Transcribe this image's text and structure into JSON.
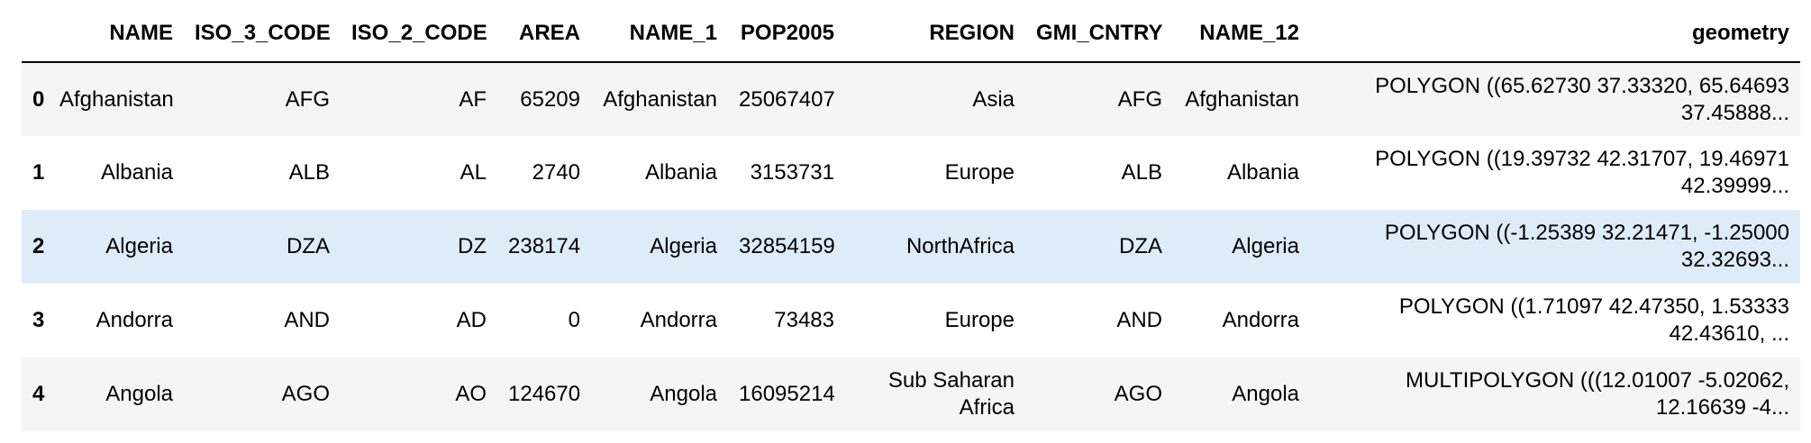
{
  "table": {
    "columns": [
      "",
      "NAME",
      "ISO_3_CODE",
      "ISO_2_CODE",
      "AREA",
      "NAME_1",
      "POP2005",
      "REGION",
      "GMI_CNTRY",
      "NAME_12",
      "geometry"
    ],
    "rows": [
      {
        "index": "0",
        "NAME": "Afghanistan",
        "ISO_3_CODE": "AFG",
        "ISO_2_CODE": "AF",
        "AREA": "65209",
        "NAME_1": "Afghanistan",
        "POP2005": "25067407",
        "REGION": "Asia",
        "GMI_CNTRY": "AFG",
        "NAME_12": "Afghanistan",
        "geometry": "POLYGON ((65.62730 37.33320, 65.64693 37.45888..."
      },
      {
        "index": "1",
        "NAME": "Albania",
        "ISO_3_CODE": "ALB",
        "ISO_2_CODE": "AL",
        "AREA": "2740",
        "NAME_1": "Albania",
        "POP2005": "3153731",
        "REGION": "Europe",
        "GMI_CNTRY": "ALB",
        "NAME_12": "Albania",
        "geometry": "POLYGON ((19.39732 42.31707, 19.46971 42.39999..."
      },
      {
        "index": "2",
        "NAME": "Algeria",
        "ISO_3_CODE": "DZA",
        "ISO_2_CODE": "DZ",
        "AREA": "238174",
        "NAME_1": "Algeria",
        "POP2005": "32854159",
        "REGION": "NorthAfrica",
        "GMI_CNTRY": "DZA",
        "NAME_12": "Algeria",
        "geometry": "POLYGON ((-1.25389 32.21471, -1.25000 32.32693..."
      },
      {
        "index": "3",
        "NAME": "Andorra",
        "ISO_3_CODE": "AND",
        "ISO_2_CODE": "AD",
        "AREA": "0",
        "NAME_1": "Andorra",
        "POP2005": "73483",
        "REGION": "Europe",
        "GMI_CNTRY": "AND",
        "NAME_12": "Andorra",
        "geometry": "POLYGON ((1.71097 42.47350, 1.53333 42.43610, ..."
      },
      {
        "index": "4",
        "NAME": "Angola",
        "ISO_3_CODE": "AGO",
        "ISO_2_CODE": "AO",
        "AREA": "124670",
        "NAME_1": "Angola",
        "POP2005": "16095214",
        "REGION": "Sub Saharan Africa",
        "GMI_CNTRY": "AGO",
        "NAME_12": "Angola",
        "geometry": "MULTIPOLYGON (((12.01007 -5.02062, 12.16639 -4..."
      }
    ]
  },
  "colors": {
    "row_striped": "#f5f5f5",
    "row_plain": "#ffffff",
    "row_hover": "#deebf9",
    "header_rule": "#000000"
  }
}
